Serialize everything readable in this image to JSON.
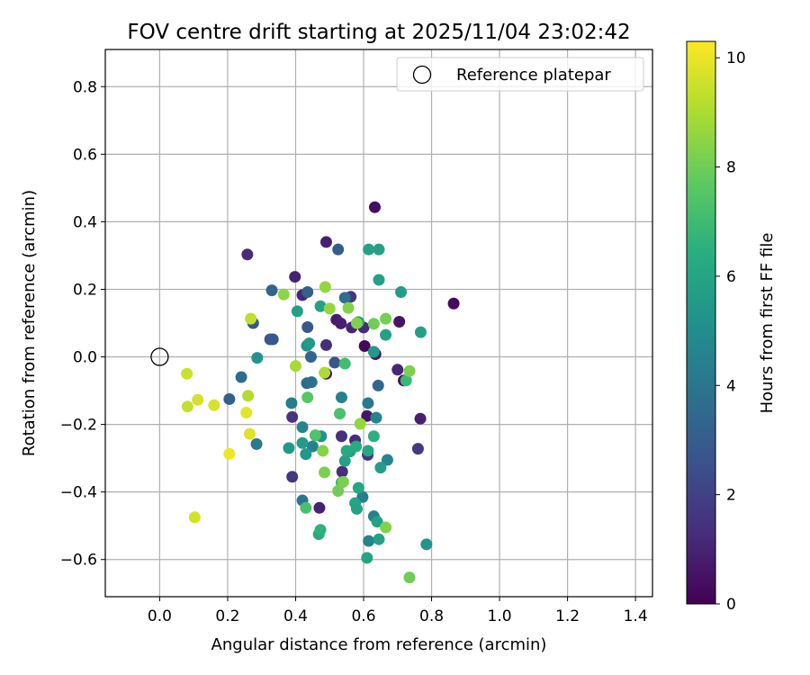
{
  "chart_data": {
    "type": "scatter",
    "title": "FOV centre drift starting at 2025/11/04 23:02:42",
    "xlabel": "Angular distance from reference (arcmin)",
    "ylabel": "Rotation from reference (arcmin)",
    "xlim": [
      -0.16,
      1.45
    ],
    "ylim": [
      -0.71,
      0.91
    ],
    "xticks": [
      "0.0",
      "0.2",
      "0.4",
      "0.6",
      "0.8",
      "1.0",
      "1.2",
      "1.4"
    ],
    "yticks": [
      "−0.6",
      "−0.4",
      "−0.2",
      "0.0",
      "0.2",
      "0.4",
      "0.6",
      "0.8"
    ],
    "grid": true,
    "legend": {
      "position": "top-right",
      "entries": [
        "Reference platepar"
      ]
    },
    "reference_point": {
      "x": 0.0,
      "y": 0.0
    },
    "colorbar": {
      "label": "Hours from first FF file",
      "range": [
        0,
        10.3
      ],
      "ticks": [
        "0",
        "2",
        "4",
        "6",
        "8",
        "10"
      ],
      "colormap": "viridis"
    },
    "points": [
      {
        "x": 0.633,
        "y": 0.443,
        "t": 0.4
      },
      {
        "x": 0.865,
        "y": 0.158,
        "t": 0.3
      },
      {
        "x": 0.49,
        "y": 0.34,
        "t": 0.9
      },
      {
        "x": 0.398,
        "y": 0.237,
        "t": 1.0
      },
      {
        "x": 0.258,
        "y": 0.303,
        "t": 1.3
      },
      {
        "x": 0.42,
        "y": 0.183,
        "t": 1.1
      },
      {
        "x": 0.562,
        "y": 0.178,
        "t": 1.6
      },
      {
        "x": 0.52,
        "y": 0.11,
        "t": 0.8
      },
      {
        "x": 0.533,
        "y": 0.099,
        "t": 0.9
      },
      {
        "x": 0.565,
        "y": 0.087,
        "t": 1.1
      },
      {
        "x": 0.6,
        "y": 0.087,
        "t": 1.2
      },
      {
        "x": 0.705,
        "y": 0.104,
        "t": 0.6
      },
      {
        "x": 0.49,
        "y": 0.035,
        "t": 1.4
      },
      {
        "x": 0.603,
        "y": 0.032,
        "t": 0.2
      },
      {
        "x": 0.635,
        "y": 0.008,
        "t": 0.7
      },
      {
        "x": 0.7,
        "y": -0.038,
        "t": 1.1
      },
      {
        "x": 0.49,
        "y": -0.05,
        "t": 0.4
      },
      {
        "x": 0.718,
        "y": -0.07,
        "t": 0.2
      },
      {
        "x": 0.61,
        "y": -0.175,
        "t": 0.6
      },
      {
        "x": 0.767,
        "y": -0.183,
        "t": 0.9
      },
      {
        "x": 0.39,
        "y": -0.178,
        "t": 1.5
      },
      {
        "x": 0.535,
        "y": -0.235,
        "t": 1.4
      },
      {
        "x": 0.575,
        "y": -0.247,
        "t": 1.2
      },
      {
        "x": 0.76,
        "y": -0.272,
        "t": 1.7
      },
      {
        "x": 0.612,
        "y": -0.29,
        "t": 1.5
      },
      {
        "x": 0.39,
        "y": -0.355,
        "t": 1.6
      },
      {
        "x": 0.537,
        "y": -0.34,
        "t": 1.3
      },
      {
        "x": 0.47,
        "y": -0.447,
        "t": 1.0
      },
      {
        "x": 0.525,
        "y": 0.318,
        "t": 3.0
      },
      {
        "x": 0.33,
        "y": 0.197,
        "t": 3.3
      },
      {
        "x": 0.435,
        "y": 0.192,
        "t": 3.1
      },
      {
        "x": 0.545,
        "y": 0.175,
        "t": 3.7
      },
      {
        "x": 0.275,
        "y": 0.1,
        "t": 2.7
      },
      {
        "x": 0.435,
        "y": 0.088,
        "t": 2.8
      },
      {
        "x": 0.325,
        "y": 0.052,
        "t": 2.7
      },
      {
        "x": 0.333,
        "y": 0.052,
        "t": 2.9
      },
      {
        "x": 0.445,
        "y": 0.0,
        "t": 3.3
      },
      {
        "x": 0.515,
        "y": -0.017,
        "t": 2.7
      },
      {
        "x": 0.24,
        "y": -0.06,
        "t": 3.6
      },
      {
        "x": 0.205,
        "y": -0.125,
        "t": 3.1
      },
      {
        "x": 0.643,
        "y": -0.085,
        "t": 3.5
      },
      {
        "x": 0.433,
        "y": -0.078,
        "t": 3.6
      },
      {
        "x": 0.447,
        "y": -0.075,
        "t": 3.8
      },
      {
        "x": 0.613,
        "y": -0.137,
        "t": 4.1
      },
      {
        "x": 0.388,
        "y": -0.137,
        "t": 4.3
      },
      {
        "x": 0.535,
        "y": -0.12,
        "t": 4.5
      },
      {
        "x": 0.637,
        "y": -0.18,
        "t": 4.6
      },
      {
        "x": 0.285,
        "y": -0.258,
        "t": 4.2
      },
      {
        "x": 0.42,
        "y": -0.208,
        "t": 4.6
      },
      {
        "x": 0.45,
        "y": -0.265,
        "t": 4.5
      },
      {
        "x": 0.42,
        "y": -0.425,
        "t": 4.0
      },
      {
        "x": 0.597,
        "y": -0.415,
        "t": 4.3
      },
      {
        "x": 0.63,
        "y": -0.472,
        "t": 4.5
      },
      {
        "x": 0.615,
        "y": -0.545,
        "t": 4.6
      },
      {
        "x": 0.67,
        "y": -0.305,
        "t": 4.6
      },
      {
        "x": 0.645,
        "y": 0.228,
        "t": 5.8
      },
      {
        "x": 0.615,
        "y": 0.318,
        "t": 5.9
      },
      {
        "x": 0.645,
        "y": 0.318,
        "t": 5.8
      },
      {
        "x": 0.71,
        "y": 0.192,
        "t": 5.7
      },
      {
        "x": 0.473,
        "y": 0.15,
        "t": 5.8
      },
      {
        "x": 0.405,
        "y": 0.135,
        "t": 5.8
      },
      {
        "x": 0.585,
        "y": 0.103,
        "t": 5.6
      },
      {
        "x": 0.665,
        "y": 0.065,
        "t": 5.9
      },
      {
        "x": 0.768,
        "y": 0.073,
        "t": 5.8
      },
      {
        "x": 0.433,
        "y": 0.033,
        "t": 5.2
      },
      {
        "x": 0.44,
        "y": 0.04,
        "t": 5.5
      },
      {
        "x": 0.63,
        "y": 0.015,
        "t": 5.5
      },
      {
        "x": 0.287,
        "y": -0.003,
        "t": 5.3
      },
      {
        "x": 0.38,
        "y": -0.27,
        "t": 5.5
      },
      {
        "x": 0.42,
        "y": -0.255,
        "t": 5.6
      },
      {
        "x": 0.43,
        "y": -0.288,
        "t": 5.4
      },
      {
        "x": 0.475,
        "y": -0.235,
        "t": 5.2
      },
      {
        "x": 0.545,
        "y": -0.308,
        "t": 5.8
      },
      {
        "x": 0.56,
        "y": -0.28,
        "t": 5.9
      },
      {
        "x": 0.55,
        "y": -0.278,
        "t": 6.2
      },
      {
        "x": 0.578,
        "y": -0.265,
        "t": 6.3
      },
      {
        "x": 0.613,
        "y": -0.278,
        "t": 6.1
      },
      {
        "x": 0.63,
        "y": -0.235,
        "t": 6.5
      },
      {
        "x": 0.65,
        "y": -0.328,
        "t": 5.7
      },
      {
        "x": 0.585,
        "y": -0.388,
        "t": 6.1
      },
      {
        "x": 0.575,
        "y": -0.433,
        "t": 6.0
      },
      {
        "x": 0.58,
        "y": -0.45,
        "t": 5.9
      },
      {
        "x": 0.64,
        "y": -0.488,
        "t": 5.8
      },
      {
        "x": 0.645,
        "y": -0.54,
        "t": 5.9
      },
      {
        "x": 0.785,
        "y": -0.555,
        "t": 5.3
      },
      {
        "x": 0.61,
        "y": -0.595,
        "t": 6.0
      },
      {
        "x": 0.468,
        "y": -0.525,
        "t": 6.3
      },
      {
        "x": 0.473,
        "y": -0.512,
        "t": 6.6
      },
      {
        "x": 0.535,
        "y": -0.372,
        "t": 6.9
      },
      {
        "x": 0.725,
        "y": -0.07,
        "t": 6.9
      },
      {
        "x": 0.545,
        "y": -0.02,
        "t": 7.1
      },
      {
        "x": 0.458,
        "y": -0.232,
        "t": 7.4
      },
      {
        "x": 0.43,
        "y": -0.447,
        "t": 7.2
      },
      {
        "x": 0.53,
        "y": -0.168,
        "t": 7.3
      },
      {
        "x": 0.435,
        "y": -0.12,
        "t": 7.6
      },
      {
        "x": 0.63,
        "y": 0.098,
        "t": 8.0
      },
      {
        "x": 0.665,
        "y": 0.113,
        "t": 8.1
      },
      {
        "x": 0.555,
        "y": 0.145,
        "t": 8.3
      },
      {
        "x": 0.487,
        "y": 0.207,
        "t": 8.6
      },
      {
        "x": 0.365,
        "y": 0.185,
        "t": 8.5
      },
      {
        "x": 0.5,
        "y": 0.143,
        "t": 8.6
      },
      {
        "x": 0.58,
        "y": 0.1,
        "t": 8.3
      },
      {
        "x": 0.4,
        "y": -0.027,
        "t": 8.9
      },
      {
        "x": 0.485,
        "y": -0.047,
        "t": 9.0
      },
      {
        "x": 0.735,
        "y": -0.042,
        "t": 8.2
      },
      {
        "x": 0.59,
        "y": -0.198,
        "t": 8.6
      },
      {
        "x": 0.48,
        "y": -0.278,
        "t": 8.4
      },
      {
        "x": 0.485,
        "y": -0.342,
        "t": 8.2
      },
      {
        "x": 0.525,
        "y": -0.397,
        "t": 8.0
      },
      {
        "x": 0.54,
        "y": -0.37,
        "t": 8.2
      },
      {
        "x": 0.665,
        "y": -0.505,
        "t": 8.3
      },
      {
        "x": 0.735,
        "y": -0.653,
        "t": 8.0
      },
      {
        "x": 0.268,
        "y": 0.113,
        "t": 9.3
      },
      {
        "x": 0.26,
        "y": -0.115,
        "t": 9.1
      },
      {
        "x": 0.08,
        "y": -0.05,
        "t": 9.5
      },
      {
        "x": 0.112,
        "y": -0.127,
        "t": 9.6
      },
      {
        "x": 0.082,
        "y": -0.147,
        "t": 9.4
      },
      {
        "x": 0.16,
        "y": -0.143,
        "t": 9.7
      },
      {
        "x": 0.255,
        "y": -0.165,
        "t": 9.9
      },
      {
        "x": 0.265,
        "y": -0.228,
        "t": 9.8
      },
      {
        "x": 0.205,
        "y": -0.287,
        "t": 10.1
      },
      {
        "x": 0.103,
        "y": -0.475,
        "t": 9.6
      }
    ]
  }
}
